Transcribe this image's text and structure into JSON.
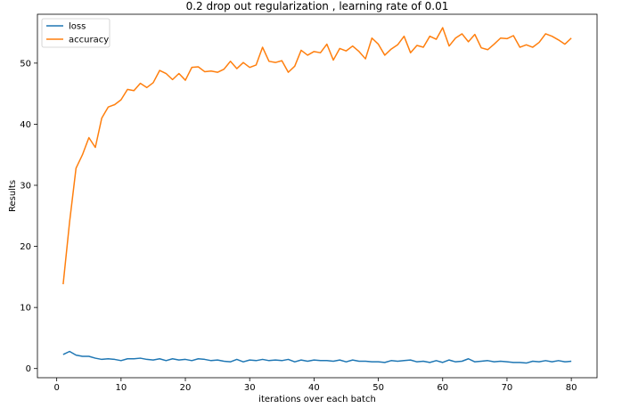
{
  "chart_data": {
    "type": "line",
    "title": "0.2 drop out regularization , learning rate of 0.01",
    "xlabel": "iterations over each batch",
    "ylabel": "Results",
    "xlim": [
      -3,
      84
    ],
    "ylim": [
      -1.5,
      58
    ],
    "xticks": [
      0,
      10,
      20,
      30,
      40,
      50,
      60,
      70,
      80
    ],
    "yticks": [
      0,
      10,
      20,
      30,
      40,
      50
    ],
    "grid": false,
    "legend_position": "top-left",
    "x": [
      1,
      2,
      3,
      4,
      5,
      6,
      7,
      8,
      9,
      10,
      11,
      12,
      13,
      14,
      15,
      16,
      17,
      18,
      19,
      20,
      21,
      22,
      23,
      24,
      25,
      26,
      27,
      28,
      29,
      30,
      31,
      32,
      33,
      34,
      35,
      36,
      37,
      38,
      39,
      40,
      41,
      42,
      43,
      44,
      45,
      46,
      47,
      48,
      49,
      50,
      51,
      52,
      53,
      54,
      55,
      56,
      57,
      58,
      59,
      60,
      61,
      62,
      63,
      64,
      65,
      66,
      67,
      68,
      69,
      70,
      71,
      72,
      73,
      74,
      75,
      76,
      77,
      78,
      79,
      80
    ],
    "series": [
      {
        "name": "loss",
        "color": "#1f77b4",
        "values": [
          2.3,
          2.8,
          2.2,
          2.0,
          2.0,
          1.7,
          1.5,
          1.6,
          1.5,
          1.3,
          1.6,
          1.6,
          1.7,
          1.5,
          1.4,
          1.6,
          1.3,
          1.6,
          1.4,
          1.5,
          1.3,
          1.6,
          1.5,
          1.3,
          1.4,
          1.2,
          1.1,
          1.5,
          1.1,
          1.4,
          1.3,
          1.5,
          1.3,
          1.4,
          1.3,
          1.5,
          1.1,
          1.4,
          1.2,
          1.4,
          1.3,
          1.3,
          1.2,
          1.4,
          1.1,
          1.4,
          1.2,
          1.2,
          1.1,
          1.1,
          1.0,
          1.3,
          1.2,
          1.3,
          1.4,
          1.1,
          1.2,
          1.0,
          1.3,
          1.0,
          1.4,
          1.1,
          1.2,
          1.6,
          1.1,
          1.2,
          1.3,
          1.1,
          1.2,
          1.1,
          1.0,
          1.0,
          0.9,
          1.2,
          1.1,
          1.3,
          1.1,
          1.3,
          1.1,
          1.2
        ]
      },
      {
        "name": "accuracy",
        "color": "#ff7f0e",
        "values": [
          13.8,
          24.0,
          32.8,
          35.0,
          37.8,
          36.2,
          41.0,
          42.8,
          43.2,
          44.0,
          45.7,
          45.5,
          46.7,
          46.0,
          46.8,
          48.8,
          48.3,
          47.3,
          48.3,
          47.2,
          49.3,
          49.4,
          48.6,
          48.7,
          48.5,
          49.0,
          50.3,
          49.1,
          50.1,
          49.3,
          49.7,
          52.6,
          50.3,
          50.1,
          50.4,
          48.5,
          49.5,
          52.1,
          51.3,
          51.9,
          51.7,
          53.1,
          50.5,
          52.4,
          52.0,
          52.8,
          51.9,
          50.7,
          54.1,
          53.1,
          51.3,
          52.3,
          53.0,
          54.4,
          51.7,
          52.9,
          52.6,
          54.4,
          53.9,
          55.8,
          52.8,
          54.1,
          54.8,
          53.5,
          54.7,
          52.5,
          52.2,
          53.1,
          54.1,
          54.0,
          54.5,
          52.6,
          53.0,
          52.6,
          53.4,
          54.8,
          54.4,
          53.8,
          53.1,
          54.1
        ]
      }
    ]
  }
}
